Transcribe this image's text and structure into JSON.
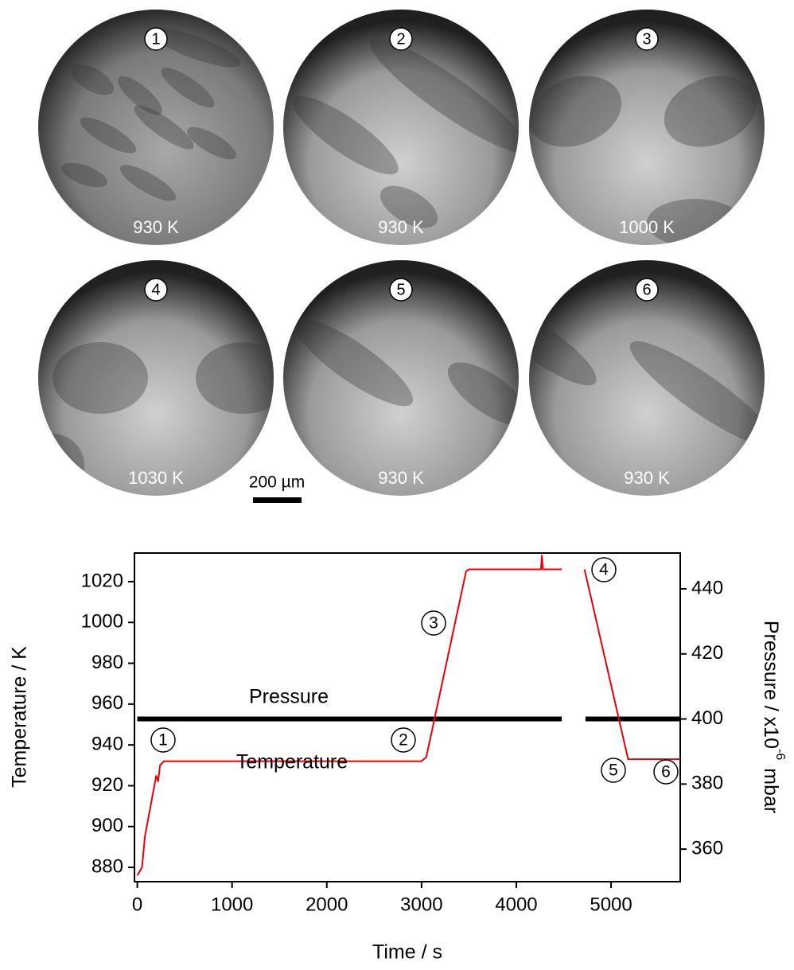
{
  "panels": [
    {
      "number": "1",
      "label": "930 K"
    },
    {
      "number": "2",
      "label": "930 K"
    },
    {
      "number": "3",
      "label": "1000 K"
    },
    {
      "number": "4",
      "label": "1030 K"
    },
    {
      "number": "5",
      "label": "930 K"
    },
    {
      "number": "6",
      "label": "930 K"
    }
  ],
  "scale_bar": "200 µm",
  "chart_data": {
    "type": "line",
    "x_label": "Time / s",
    "y_label": "Temperature / K",
    "y2_label": {
      "text": "Pressure / x10",
      "superscript": "-6",
      "unit": "mbar"
    },
    "xlim": [
      -30,
      5730
    ],
    "xticks": [
      0,
      1000,
      2000,
      3000,
      4000,
      5000
    ],
    "ylim": [
      873,
      1034
    ],
    "yticks": [
      880,
      900,
      920,
      940,
      960,
      980,
      1000,
      1020
    ],
    "y2lim": [
      350,
      451
    ],
    "y2ticks": [
      360,
      380,
      400,
      420,
      440
    ],
    "series": [
      {
        "name": "Temperature",
        "color": "#e8000b",
        "x": [
          0,
          50,
          80,
          200,
          220,
          240,
          280,
          1500,
          3000,
          3050,
          3470,
          3500,
          4260,
          4270,
          4280,
          4480,
          null,
          4720,
          5180,
          5730
        ],
        "values": [
          876,
          880,
          895,
          925,
          922,
          930,
          932,
          932,
          932,
          934,
          1025,
          1026,
          1026,
          1033,
          1026,
          1026,
          null,
          1026,
          933,
          933
        ]
      },
      {
        "name": "Pressure",
        "color": "#000000",
        "axis": "y2",
        "x": [
          0,
          4480,
          null,
          4730,
          5730
        ],
        "values": [
          400,
          400,
          null,
          400,
          400
        ]
      }
    ],
    "annotations": [
      "Pressure",
      "Temperature",
      "1",
      "2",
      "3",
      "4",
      "5",
      "6"
    ]
  }
}
